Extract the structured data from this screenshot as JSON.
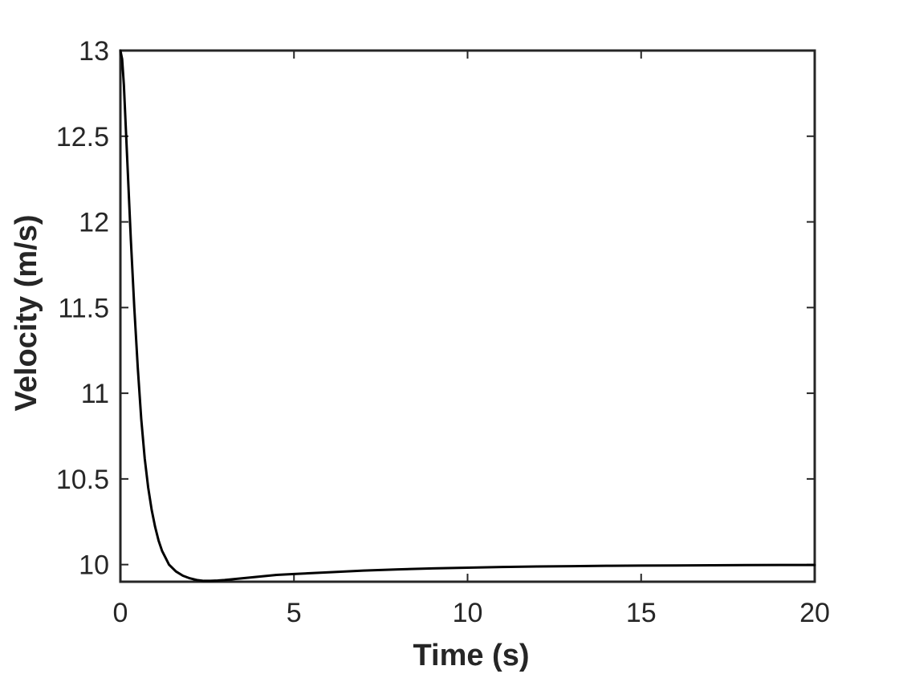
{
  "chart_data": {
    "type": "line",
    "title": "",
    "xlabel": "Time (s)",
    "ylabel": "Velocity (m/s)",
    "xlim": [
      0,
      20
    ],
    "ylim": [
      9.9,
      13
    ],
    "xticks": [
      0,
      5,
      10,
      15,
      20
    ],
    "xtick_labels": [
      "0",
      "5",
      "10",
      "15",
      "20"
    ],
    "yticks": [
      10,
      10.5,
      11,
      11.5,
      12,
      12.5,
      13
    ],
    "ytick_labels": [
      "10",
      "10.5",
      "11",
      "11.5",
      "12",
      "12.5",
      "13"
    ],
    "grid": false,
    "legend": "none",
    "line_color": "#000000",
    "series": [
      {
        "x": [
          0,
          0.05,
          0.1,
          0.2,
          0.3,
          0.4,
          0.5,
          0.6,
          0.7,
          0.8,
          0.9,
          1.0,
          1.1,
          1.2,
          1.3,
          1.4,
          1.5,
          1.6,
          1.8,
          2.0,
          2.2,
          2.4,
          2.6,
          2.8,
          3.0,
          3.5,
          4.0,
          4.5,
          5,
          6,
          7,
          8,
          9,
          10,
          11,
          12,
          13,
          14,
          15,
          16,
          17,
          18,
          19,
          20
        ],
        "y": [
          13.0,
          12.95,
          12.8,
          12.35,
          11.9,
          11.5,
          11.15,
          10.85,
          10.62,
          10.45,
          10.32,
          10.22,
          10.14,
          10.08,
          10.04,
          10.0,
          9.98,
          9.96,
          9.935,
          9.92,
          9.91,
          9.905,
          9.905,
          9.907,
          9.91,
          9.92,
          9.93,
          9.94,
          9.945,
          9.955,
          9.965,
          9.972,
          9.978,
          9.982,
          9.986,
          9.989,
          9.991,
          9.993,
          9.994,
          9.995,
          9.996,
          9.997,
          9.998,
          9.998
        ]
      }
    ]
  }
}
